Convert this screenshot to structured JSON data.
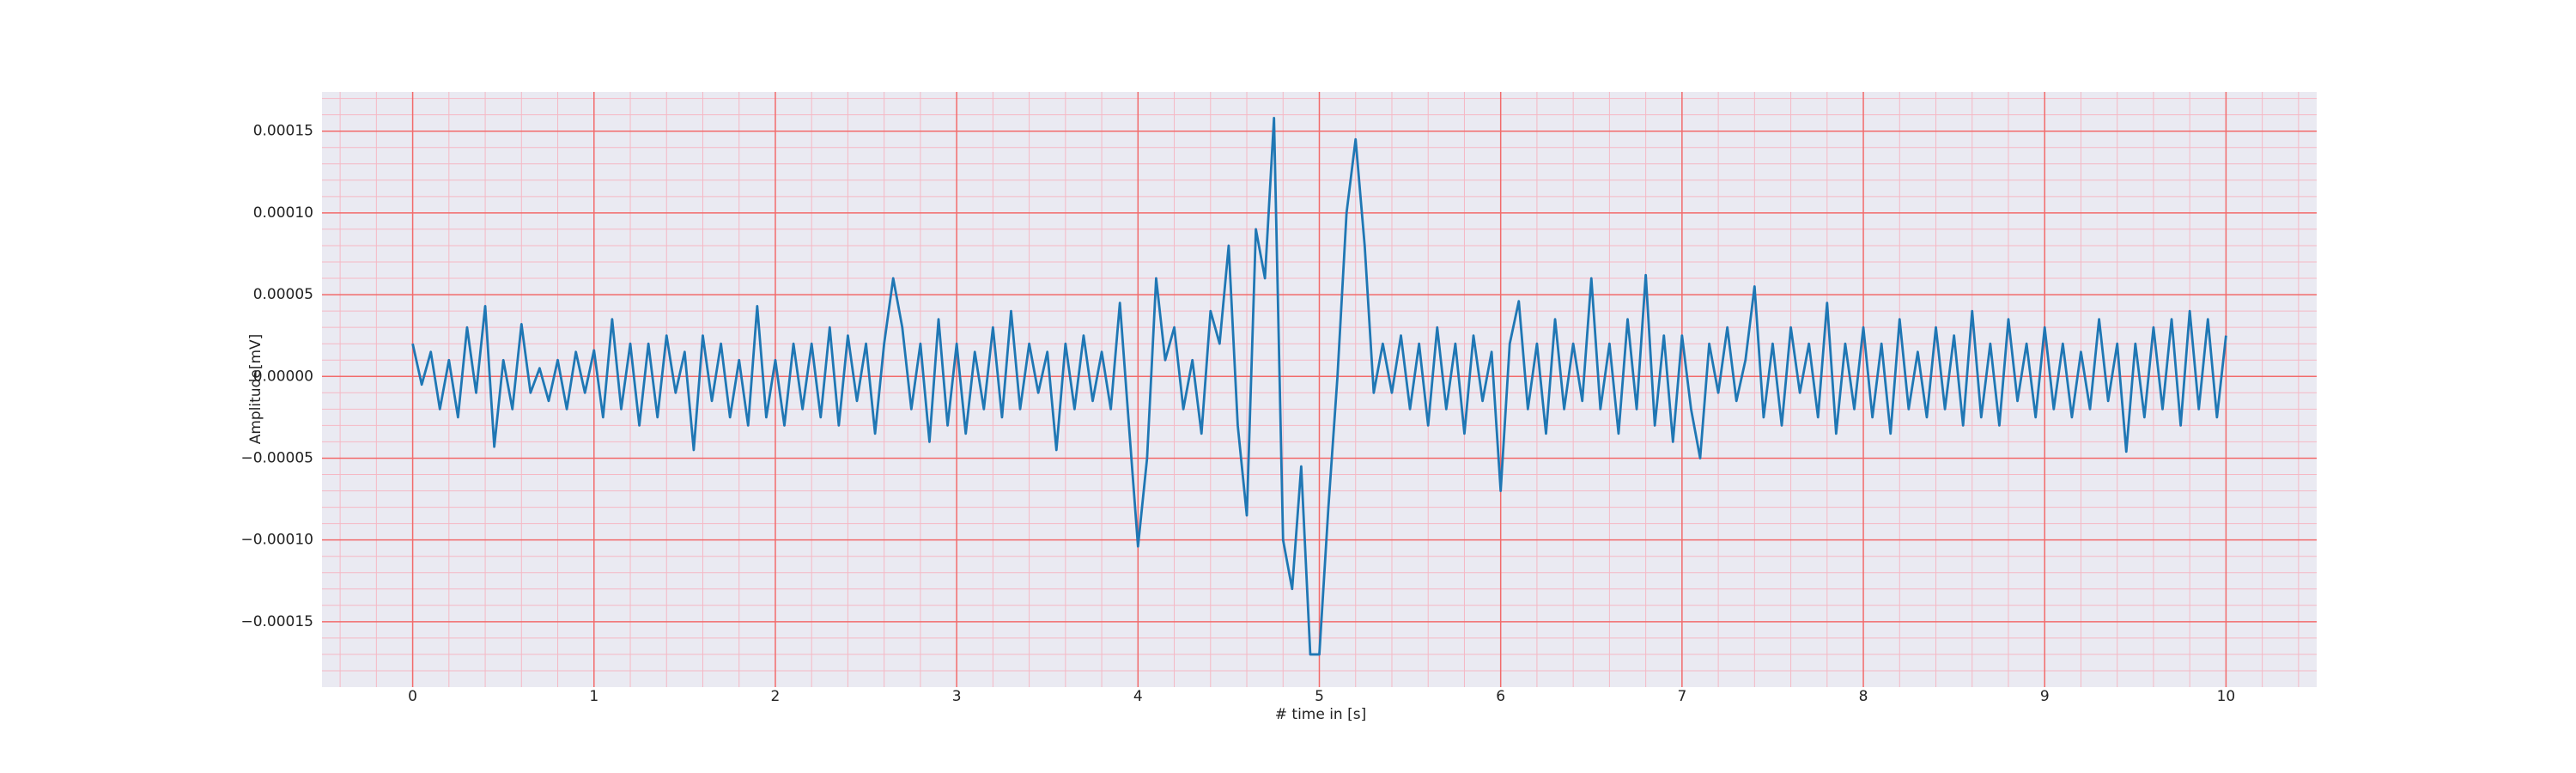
{
  "chart_data": {
    "type": "line",
    "xlabel": "# time in [s]",
    "ylabel": "Amplitude[mV]",
    "xlim": [
      -0.5,
      10.5
    ],
    "ylim": [
      -0.00019,
      0.000174
    ],
    "xticks": [
      0,
      1,
      2,
      3,
      4,
      5,
      6,
      7,
      8,
      9,
      10
    ],
    "yticks": [
      {
        "value": -0.00015,
        "label": "−0.00015"
      },
      {
        "value": -0.0001,
        "label": "−0.00010"
      },
      {
        "value": -5e-05,
        "label": "−0.00005"
      },
      {
        "value": 0,
        "label": "0.00000"
      },
      {
        "value": 5e-05,
        "label": "0.00005"
      },
      {
        "value": 0.0001,
        "label": "0.00010"
      },
      {
        "value": 0.00015,
        "label": "0.00015"
      }
    ],
    "xminorticks": [
      -0.4,
      -0.2,
      0.2,
      0.4,
      0.6,
      0.8,
      1.2,
      1.4,
      1.6,
      1.8,
      2.2,
      2.4,
      2.6,
      2.8,
      3.2,
      3.4,
      3.6,
      3.8,
      4.2,
      4.4,
      4.6,
      4.8,
      5.2,
      5.4,
      5.6,
      5.8,
      6.2,
      6.4,
      6.6,
      6.8,
      7.2,
      7.4,
      7.6,
      7.8,
      8.2,
      8.4,
      8.6,
      8.8,
      9.2,
      9.4,
      9.6,
      9.8,
      10.2,
      10.4
    ],
    "yminorticks": [
      -0.00018,
      -0.00017,
      -0.00016,
      -0.00014,
      -0.00013,
      -0.00012,
      -0.00011,
      -9e-05,
      -8e-05,
      -7e-05,
      -6e-05,
      -4e-05,
      -3e-05,
      -2e-05,
      -1e-05,
      1e-05,
      2e-05,
      3e-05,
      4e-05,
      6e-05,
      7e-05,
      8e-05,
      9e-05,
      0.00011,
      0.00012,
      0.00013,
      0.00014,
      0.00016,
      0.00017
    ],
    "grid": true,
    "grid_color": "#f26b6b",
    "minor_grid_color": "#f5b8c4",
    "background": "#eaeaf2",
    "x": [
      0,
      0.05,
      0.1,
      0.15,
      0.2,
      0.25,
      0.3,
      0.35,
      0.4,
      0.45,
      0.5,
      0.55,
      0.6,
      0.65,
      0.7,
      0.75,
      0.8,
      0.85,
      0.9,
      0.95,
      1,
      1.05,
      1.1,
      1.15,
      1.2,
      1.25,
      1.3,
      1.35,
      1.4,
      1.45,
      1.5,
      1.55,
      1.6,
      1.65,
      1.7,
      1.75,
      1.8,
      1.85,
      1.9,
      1.95,
      2,
      2.05,
      2.1,
      2.15,
      2.2,
      2.25,
      2.3,
      2.35,
      2.4,
      2.45,
      2.5,
      2.55,
      2.6,
      2.65,
      2.7,
      2.75,
      2.8,
      2.85,
      2.9,
      2.95,
      3,
      3.05,
      3.1,
      3.15,
      3.2,
      3.25,
      3.3,
      3.35,
      3.4,
      3.45,
      3.5,
      3.55,
      3.6,
      3.65,
      3.7,
      3.75,
      3.8,
      3.85,
      3.9,
      3.95,
      4,
      4.05,
      4.1,
      4.15,
      4.2,
      4.25,
      4.3,
      4.35,
      4.4,
      4.45,
      4.5,
      4.55,
      4.6,
      4.65,
      4.7,
      4.75,
      4.8,
      4.85,
      4.9,
      4.95,
      5,
      5.05,
      5.1,
      5.15,
      5.2,
      5.25,
      5.3,
      5.35,
      5.4,
      5.45,
      5.5,
      5.55,
      5.6,
      5.65,
      5.7,
      5.75,
      5.8,
      5.85,
      5.9,
      5.95,
      6,
      6.05,
      6.1,
      6.15,
      6.2,
      6.25,
      6.3,
      6.35,
      6.4,
      6.45,
      6.5,
      6.55,
      6.6,
      6.65,
      6.7,
      6.75,
      6.8,
      6.85,
      6.9,
      6.95,
      7,
      7.05,
      7.1,
      7.15,
      7.2,
      7.25,
      7.3,
      7.35,
      7.4,
      7.45,
      7.5,
      7.55,
      7.6,
      7.65,
      7.7,
      7.75,
      7.8,
      7.85,
      7.9,
      7.95,
      8,
      8.05,
      8.1,
      8.15,
      8.2,
      8.25,
      8.3,
      8.35,
      8.4,
      8.45,
      8.5,
      8.55,
      8.6,
      8.65,
      8.7,
      8.75,
      8.8,
      8.85,
      8.9,
      8.95,
      9,
      9.05,
      9.1,
      9.15,
      9.2,
      9.25,
      9.3,
      9.35,
      9.4,
      9.45,
      9.5,
      9.55,
      9.6,
      9.65,
      9.7,
      9.75,
      9.8,
      9.85,
      9.9,
      9.95,
      10
    ],
    "series": [
      {
        "color": "#1f77b4",
        "values": [
          2e-05,
          -5e-06,
          1.5e-05,
          -2e-05,
          1e-05,
          -2.5e-05,
          3e-05,
          -1e-05,
          4.3e-05,
          -4.3e-05,
          1e-05,
          -2e-05,
          3.2e-05,
          -1e-05,
          5e-06,
          -1.5e-05,
          1e-05,
          -2e-05,
          1.5e-05,
          -1e-05,
          1.6e-05,
          -2.5e-05,
          3.5e-05,
          -2e-05,
          2e-05,
          -3e-05,
          2e-05,
          -2.5e-05,
          2.5e-05,
          -1e-05,
          1.5e-05,
          -4.5e-05,
          2.5e-05,
          -1.5e-05,
          2e-05,
          -2.5e-05,
          1e-05,
          -3e-05,
          4.3e-05,
          -2.5e-05,
          1e-05,
          -3e-05,
          2e-05,
          -2e-05,
          2e-05,
          -2.5e-05,
          3e-05,
          -3e-05,
          2.5e-05,
          -1.5e-05,
          2e-05,
          -3.5e-05,
          2e-05,
          6e-05,
          3e-05,
          -2e-05,
          2e-05,
          -4e-05,
          3.5e-05,
          -3e-05,
          2e-05,
          -3.5e-05,
          1.5e-05,
          -2e-05,
          3e-05,
          -2.5e-05,
          4e-05,
          -2e-05,
          2e-05,
          -1e-05,
          1.5e-05,
          -4.5e-05,
          2e-05,
          -2e-05,
          2.5e-05,
          -1.5e-05,
          1.5e-05,
          -2e-05,
          4.5e-05,
          -3e-05,
          -0.000104,
          -5e-05,
          6e-05,
          1e-05,
          3e-05,
          -2e-05,
          1e-05,
          -3.5e-05,
          4e-05,
          2e-05,
          8e-05,
          -3e-05,
          -8.5e-05,
          9e-05,
          6e-05,
          0.000158,
          -0.0001,
          -0.00013,
          -5.5e-05,
          -0.00017,
          -0.00017,
          -8e-05,
          0,
          0.0001,
          0.000145,
          8e-05,
          -1e-05,
          2e-05,
          -1e-05,
          2.5e-05,
          -2e-05,
          2e-05,
          -3e-05,
          3e-05,
          -2e-05,
          2e-05,
          -3.5e-05,
          2.5e-05,
          -1.5e-05,
          1.5e-05,
          -7e-05,
          2e-05,
          4.6e-05,
          -2e-05,
          2e-05,
          -3.5e-05,
          3.5e-05,
          -2e-05,
          2e-05,
          -1.5e-05,
          6e-05,
          -2e-05,
          2e-05,
          -3.5e-05,
          3.5e-05,
          -2e-05,
          6.2e-05,
          -3e-05,
          2.5e-05,
          -4e-05,
          2.5e-05,
          -2e-05,
          -5e-05,
          2e-05,
          -1e-05,
          3e-05,
          -1.5e-05,
          1e-05,
          5.5e-05,
          -2.5e-05,
          2e-05,
          -3e-05,
          3e-05,
          -1e-05,
          2e-05,
          -2.5e-05,
          4.5e-05,
          -3.5e-05,
          2e-05,
          -2e-05,
          3e-05,
          -2.5e-05,
          2e-05,
          -3.5e-05,
          3.5e-05,
          -2e-05,
          1.5e-05,
          -2.5e-05,
          3e-05,
          -2e-05,
          2.5e-05,
          -3e-05,
          4e-05,
          -2.5e-05,
          2e-05,
          -3e-05,
          3.5e-05,
          -1.5e-05,
          2e-05,
          -2.5e-05,
          3e-05,
          -2e-05,
          2e-05,
          -2.5e-05,
          1.5e-05,
          -2e-05,
          3.5e-05,
          -1.5e-05,
          2e-05,
          -4.6e-05,
          2e-05,
          -2.5e-05,
          3e-05,
          -2e-05,
          3.5e-05,
          -3e-05,
          4e-05,
          -2e-05,
          3.5e-05,
          -2.5e-05,
          2.5e-05
        ]
      }
    ]
  }
}
